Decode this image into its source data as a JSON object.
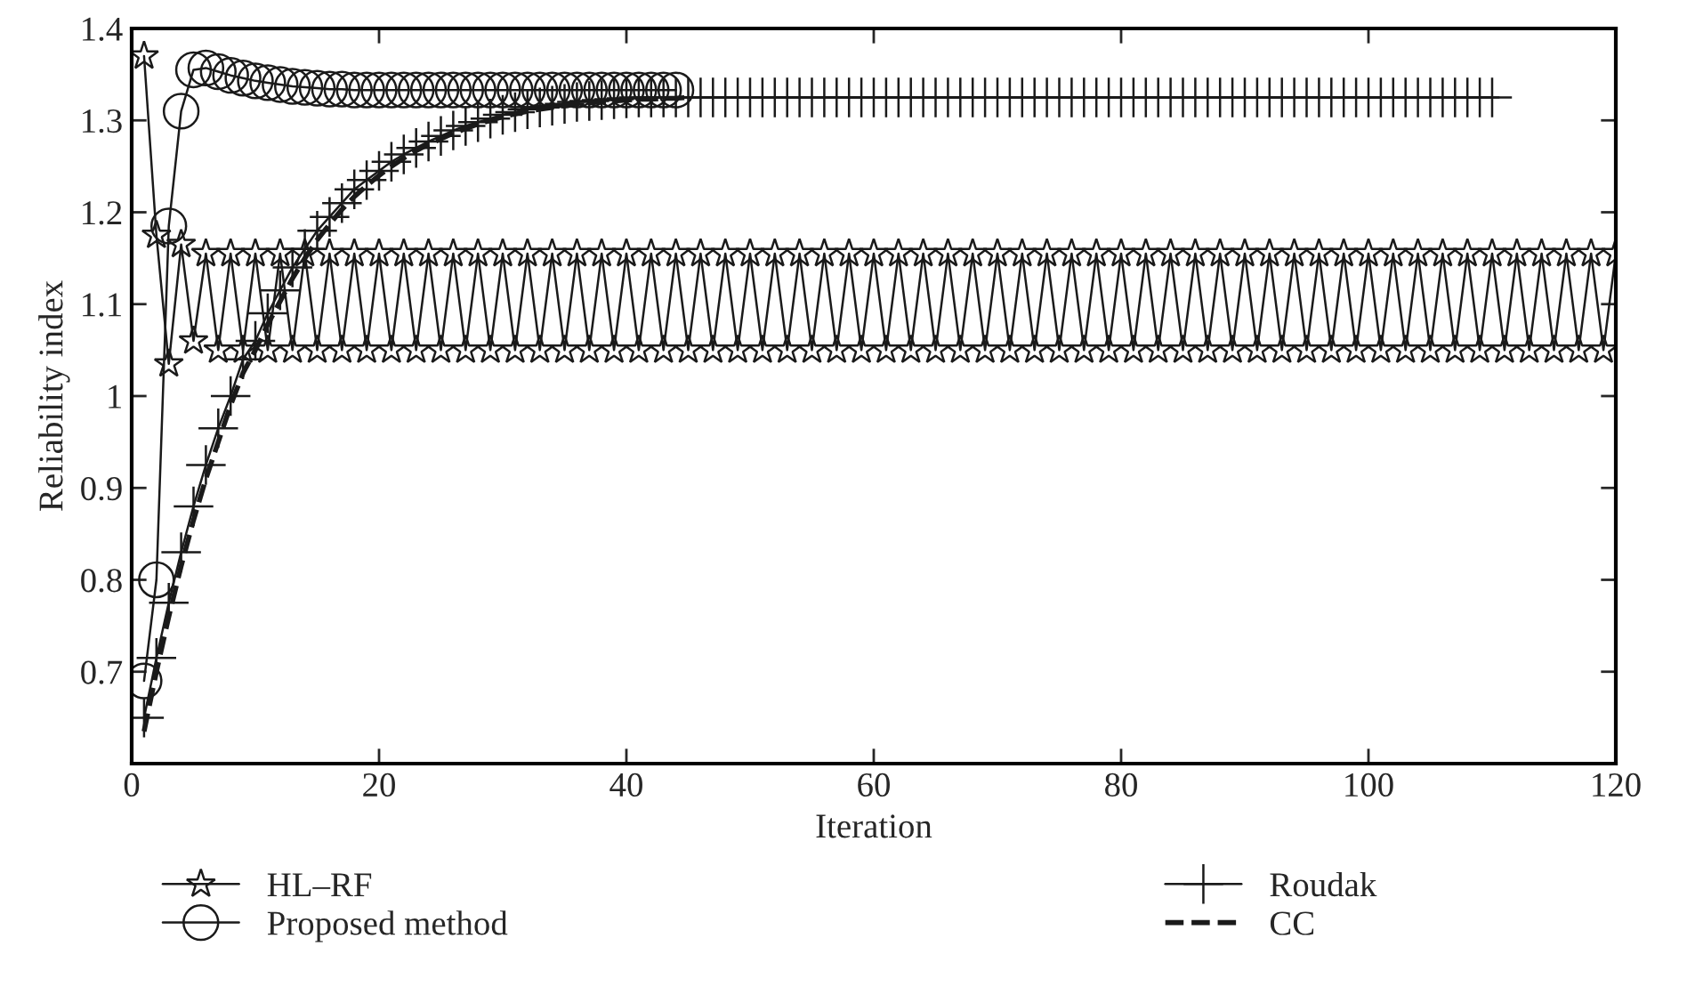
{
  "chart_data": {
    "type": "line",
    "xlabel": "Iteration",
    "ylabel": "Reliability index",
    "x": [
      1,
      2,
      3,
      4,
      5,
      6,
      7,
      8,
      9,
      10,
      11,
      12,
      13,
      14,
      15,
      16,
      17,
      18,
      19,
      20,
      21,
      22,
      23,
      24,
      25,
      26,
      27,
      28,
      29,
      30,
      31,
      32,
      33,
      34,
      35,
      36,
      37,
      38,
      39,
      40,
      41,
      42,
      43,
      44,
      45,
      46,
      47,
      48,
      49,
      50,
      51,
      52,
      53,
      54,
      55,
      56,
      57,
      58,
      59,
      60,
      61,
      62,
      63,
      64,
      65,
      66,
      67,
      68,
      69,
      70,
      71,
      72,
      73,
      74,
      75,
      76,
      77,
      78,
      79,
      80,
      81,
      82,
      83,
      84,
      85,
      86,
      87,
      88,
      89,
      90,
      91,
      92,
      93,
      94,
      95,
      96,
      97,
      98,
      99,
      100,
      101,
      102,
      103,
      104,
      105,
      106,
      107,
      108,
      109,
      110,
      111,
      112,
      113,
      114,
      115,
      116,
      117,
      118,
      119,
      120
    ],
    "series": [
      {
        "name": "HL–RF",
        "color": "#1a1a1a",
        "marker": "star",
        "line_style": "solid",
        "values": [
          1.37,
          1.175,
          1.035,
          1.165,
          1.06,
          1.155,
          1.05,
          1.155,
          1.05,
          1.155,
          1.05,
          1.155,
          1.05,
          1.155,
          1.05,
          1.155,
          1.05,
          1.155,
          1.05,
          1.155,
          1.05,
          1.155,
          1.05,
          1.155,
          1.05,
          1.155,
          1.05,
          1.155,
          1.05,
          1.155,
          1.05,
          1.155,
          1.05,
          1.155,
          1.05,
          1.155,
          1.05,
          1.155,
          1.05,
          1.155,
          1.05,
          1.155,
          1.05,
          1.155,
          1.05,
          1.155,
          1.05,
          1.155,
          1.05,
          1.155,
          1.05,
          1.155,
          1.05,
          1.155,
          1.05,
          1.155,
          1.05,
          1.155,
          1.05,
          1.155,
          1.05,
          1.155,
          1.05,
          1.155,
          1.05,
          1.155,
          1.05,
          1.155,
          1.05,
          1.155,
          1.05,
          1.155,
          1.05,
          1.155,
          1.05,
          1.155,
          1.05,
          1.155,
          1.05,
          1.155,
          1.05,
          1.155,
          1.05,
          1.155,
          1.05,
          1.155,
          1.05,
          1.155,
          1.05,
          1.155,
          1.05,
          1.155,
          1.05,
          1.155,
          1.05,
          1.155,
          1.05,
          1.155,
          1.05,
          1.155,
          1.05,
          1.155,
          1.05,
          1.155,
          1.05,
          1.155,
          1.05,
          1.155,
          1.05,
          1.155,
          1.05,
          1.155,
          1.05,
          1.155,
          1.05,
          1.155,
          1.05,
          1.155,
          1.05,
          1.155
        ]
      },
      {
        "name": "Proposed method",
        "color": "#1a1a1a",
        "marker": "circle",
        "line_style": "solid",
        "values": [
          0.69,
          0.8,
          1.185,
          1.31,
          1.355,
          1.357,
          1.353,
          1.349,
          1.346,
          1.343,
          1.341,
          1.339,
          1.337,
          1.336,
          1.335,
          1.334,
          1.334,
          1.333,
          1.333,
          1.333,
          1.333,
          1.333,
          1.333,
          1.333,
          1.333,
          1.333,
          1.333,
          1.333,
          1.333,
          1.333,
          1.333,
          1.333,
          1.333,
          1.333,
          1.333,
          1.333,
          1.333,
          1.333,
          1.333,
          1.333,
          1.333,
          1.333,
          1.333,
          1.333,
          null,
          null,
          null,
          null,
          null,
          null,
          null,
          null,
          null,
          null,
          null,
          null,
          null,
          null,
          null,
          null,
          null,
          null,
          null,
          null,
          null,
          null,
          null,
          null,
          null,
          null,
          null,
          null,
          null,
          null,
          null,
          null,
          null,
          null,
          null,
          null,
          null,
          null,
          null,
          null,
          null,
          null,
          null,
          null,
          null,
          null,
          null,
          null,
          null,
          null,
          null,
          null,
          null,
          null,
          null,
          null,
          null,
          null,
          null,
          null,
          null,
          null,
          null,
          null,
          null,
          null,
          null,
          null,
          null,
          null,
          null,
          null,
          null,
          null,
          null,
          null
        ]
      },
      {
        "name": "Roudak",
        "color": "#1a1a1a",
        "marker": "cross",
        "line_style": "solid",
        "values": [
          0.65,
          0.715,
          0.775,
          0.83,
          0.88,
          0.925,
          0.965,
          1.0,
          1.04,
          1.06,
          1.09,
          1.115,
          1.14,
          1.16,
          1.18,
          1.195,
          1.21,
          1.225,
          1.235,
          1.245,
          1.255,
          1.263,
          1.27,
          1.277,
          1.283,
          1.289,
          1.294,
          1.298,
          1.302,
          1.306,
          1.309,
          1.312,
          1.314,
          1.316,
          1.318,
          1.32,
          1.321,
          1.322,
          1.323,
          1.324,
          1.325,
          1.325,
          1.325,
          1.325,
          1.325,
          1.325,
          1.325,
          1.325,
          1.325,
          1.325,
          1.325,
          1.325,
          1.325,
          1.325,
          1.325,
          1.325,
          1.325,
          1.325,
          1.325,
          1.325,
          1.325,
          1.325,
          1.325,
          1.325,
          1.325,
          1.325,
          1.325,
          1.325,
          1.325,
          1.325,
          1.325,
          1.325,
          1.325,
          1.325,
          1.325,
          1.325,
          1.325,
          1.325,
          1.325,
          1.325,
          1.325,
          1.325,
          1.325,
          1.325,
          1.325,
          1.325,
          1.325,
          1.325,
          1.325,
          1.325,
          1.325,
          1.325,
          1.325,
          1.325,
          1.325,
          1.325,
          1.325,
          1.325,
          1.325,
          1.325,
          1.325,
          1.325,
          1.325,
          1.325,
          1.325,
          1.325,
          1.325,
          1.325,
          1.325,
          1.325,
          null,
          null,
          null,
          null,
          null,
          null,
          null,
          null,
          null,
          null
        ]
      },
      {
        "name": "CC",
        "color": "#1a1a1a",
        "marker": "none",
        "line_style": "dashed",
        "values": [
          0.635,
          0.7,
          0.76,
          0.815,
          0.865,
          0.91,
          0.95,
          0.99,
          1.025,
          1.05,
          1.078,
          1.103,
          1.128,
          1.15,
          1.17,
          1.187,
          1.203,
          1.217,
          1.229,
          1.24,
          1.25,
          1.259,
          1.267,
          1.274,
          1.28,
          1.286,
          1.291,
          1.296,
          1.3,
          1.304,
          1.307,
          1.31,
          1.312,
          1.314,
          1.316,
          1.318,
          1.319,
          1.32,
          1.321,
          1.322,
          1.323,
          1.323,
          1.324,
          1.324,
          1.325,
          null,
          null,
          null,
          null,
          null,
          null,
          null,
          null,
          null,
          null,
          null,
          null,
          null,
          null,
          null,
          null,
          null,
          null,
          null,
          null,
          null,
          null,
          null,
          null,
          null,
          null,
          null,
          null,
          null,
          null,
          null,
          null,
          null,
          null,
          null,
          null,
          null,
          null,
          null,
          null,
          null,
          null,
          null,
          null,
          null,
          null,
          null,
          null,
          null,
          null,
          null,
          null,
          null,
          null,
          null,
          null,
          null,
          null,
          null,
          null,
          null,
          null,
          null,
          null,
          null,
          null,
          null,
          null,
          null,
          null,
          null,
          null,
          null,
          null,
          null
        ]
      }
    ],
    "xlim": [
      0,
      120
    ],
    "xticks": [
      0,
      20,
      40,
      60,
      80,
      100,
      120
    ],
    "ylim": [
      0.6,
      1.4
    ],
    "yticks": [
      0.7,
      0.8,
      0.9,
      1,
      1.1,
      1.2,
      1.3,
      1.4
    ],
    "grid": false,
    "legend": "bottom"
  }
}
